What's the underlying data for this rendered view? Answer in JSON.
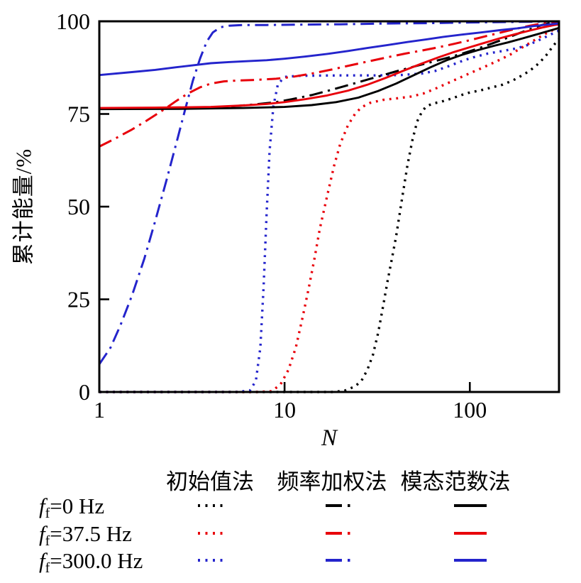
{
  "figure": {
    "background": "#ffffff"
  },
  "colors": {
    "black": "#000000",
    "red": "#e8000a",
    "blue": "#2424cc"
  },
  "axis_titles": {
    "x": "N",
    "y": "累计能量/%"
  },
  "chart_data": {
    "type": "line",
    "title": "",
    "xlabel": "N",
    "ylabel": "累计能量/%",
    "x_scale": "log",
    "xlim": [
      1,
      303
    ],
    "ylim": [
      0,
      100
    ],
    "grid": false,
    "legend_position": "below",
    "x_ticks": [
      {
        "value": 1,
        "label": "1"
      },
      {
        "value": 10,
        "label": "10"
      },
      {
        "value": 100,
        "label": "100"
      }
    ],
    "y_ticks": [
      {
        "value": 0,
        "label": "0"
      },
      {
        "value": 25,
        "label": "25"
      },
      {
        "value": 50,
        "label": "50"
      },
      {
        "value": 75,
        "label": "75"
      },
      {
        "value": 100,
        "label": "100"
      }
    ],
    "series": [
      {
        "name": "初始值法 ff=0 Hz",
        "method": "初始值法",
        "freq": "0 Hz",
        "color": "#000000",
        "style": "dotted",
        "points": [
          [
            1,
            0
          ],
          [
            10,
            0
          ],
          [
            18,
            0
          ],
          [
            21,
            0.3
          ],
          [
            24,
            1.5
          ],
          [
            26,
            3
          ],
          [
            28,
            6
          ],
          [
            30,
            10
          ],
          [
            32,
            16
          ],
          [
            34,
            23
          ],
          [
            36,
            30
          ],
          [
            38,
            36
          ],
          [
            40,
            42
          ],
          [
            43,
            52
          ],
          [
            46,
            61
          ],
          [
            49,
            68
          ],
          [
            52,
            73
          ],
          [
            55,
            75.5
          ],
          [
            58,
            77
          ],
          [
            63,
            77.8
          ],
          [
            70,
            78.3
          ],
          [
            80,
            79.2
          ],
          [
            90,
            80.1
          ],
          [
            100,
            80.8
          ],
          [
            115,
            81.4
          ],
          [
            130,
            82.1
          ],
          [
            150,
            82.9
          ],
          [
            170,
            84
          ],
          [
            190,
            85.3
          ],
          [
            210,
            86.6
          ],
          [
            230,
            88.2
          ],
          [
            250,
            90
          ],
          [
            265,
            91.5
          ],
          [
            280,
            93.2
          ],
          [
            292,
            94.3
          ],
          [
            303,
            95.2
          ]
        ]
      },
      {
        "name": "初始值法 ff=37.5 Hz",
        "method": "初始值法",
        "freq": "37.5 Hz",
        "color": "#e8000a",
        "style": "dotted",
        "points": [
          [
            1,
            0
          ],
          [
            7,
            0
          ],
          [
            8.5,
            0.2
          ],
          [
            9.5,
            2
          ],
          [
            10.5,
            6
          ],
          [
            11.5,
            12
          ],
          [
            12.5,
            20
          ],
          [
            13.5,
            28
          ],
          [
            14.5,
            36
          ],
          [
            15.5,
            44
          ],
          [
            17,
            53
          ],
          [
            18.5,
            61
          ],
          [
            20,
            67
          ],
          [
            22,
            72
          ],
          [
            24,
            75
          ],
          [
            26,
            76.8
          ],
          [
            29,
            78
          ],
          [
            34,
            78.8
          ],
          [
            40,
            79.2
          ],
          [
            48,
            79.7
          ],
          [
            56,
            80.5
          ],
          [
            65,
            81.8
          ],
          [
            75,
            83.2
          ],
          [
            85,
            84.4
          ],
          [
            100,
            86
          ],
          [
            115,
            87.3
          ],
          [
            130,
            88.5
          ],
          [
            145,
            89.6
          ],
          [
            165,
            91
          ],
          [
            185,
            92.5
          ],
          [
            205,
            93.8
          ],
          [
            230,
            95.3
          ],
          [
            255,
            96.6
          ],
          [
            280,
            97.6
          ],
          [
            303,
            98.2
          ]
        ]
      },
      {
        "name": "初始值法 ff=300.0 Hz",
        "method": "初始值法",
        "freq": "300.0 Hz",
        "color": "#2424cc",
        "style": "dotted",
        "points": [
          [
            1,
            0
          ],
          [
            5.5,
            0
          ],
          [
            6.5,
            0.4
          ],
          [
            7,
            3
          ],
          [
            7.4,
            12
          ],
          [
            7.7,
            28
          ],
          [
            8,
            48
          ],
          [
            8.3,
            65
          ],
          [
            8.7,
            77
          ],
          [
            9.2,
            83
          ],
          [
            10,
            85
          ],
          [
            12,
            85.3
          ],
          [
            20,
            85.4
          ],
          [
            30,
            85.4
          ],
          [
            42,
            85.5
          ],
          [
            55,
            85.9
          ],
          [
            65,
            86.6
          ],
          [
            78,
            88
          ],
          [
            92,
            89.4
          ],
          [
            105,
            90.3
          ],
          [
            125,
            91.3
          ],
          [
            150,
            92
          ],
          [
            175,
            92.6
          ],
          [
            200,
            93.4
          ],
          [
            225,
            94.4
          ],
          [
            250,
            95.5
          ],
          [
            270,
            96.3
          ],
          [
            290,
            97.1
          ],
          [
            303,
            97.5
          ]
        ]
      },
      {
        "name": "频率加权法 ff=0 Hz",
        "method": "频率加权法",
        "freq": "0 Hz",
        "color": "#000000",
        "style": "dashdot",
        "points": [
          [
            1,
            76.5
          ],
          [
            2,
            76.5
          ],
          [
            3,
            76.6
          ],
          [
            5,
            77
          ],
          [
            7,
            77.6
          ],
          [
            9,
            78.2
          ],
          [
            11,
            79
          ],
          [
            14,
            80.1
          ],
          [
            17,
            81.2
          ],
          [
            21,
            82.5
          ],
          [
            26,
            83.8
          ],
          [
            32,
            85.1
          ],
          [
            40,
            86.5
          ],
          [
            50,
            87.8
          ],
          [
            62,
            89
          ],
          [
            75,
            90.1
          ],
          [
            90,
            91.2
          ],
          [
            110,
            92.6
          ],
          [
            130,
            93.9
          ],
          [
            155,
            95.3
          ],
          [
            185,
            96.8
          ],
          [
            215,
            98
          ],
          [
            245,
            99
          ],
          [
            275,
            99.6
          ],
          [
            303,
            99.8
          ]
        ]
      },
      {
        "name": "频率加权法 ff=37.5 Hz",
        "method": "频率加权法",
        "freq": "37.5 Hz",
        "color": "#e8000a",
        "style": "dashdot",
        "points": [
          [
            1,
            66.2
          ],
          [
            1.2,
            68.2
          ],
          [
            1.5,
            70.8
          ],
          [
            1.8,
            73.2
          ],
          [
            2.2,
            76
          ],
          [
            2.6,
            78.5
          ],
          [
            3,
            80.5
          ],
          [
            3.5,
            82.2
          ],
          [
            4,
            83.2
          ],
          [
            4.7,
            83.8
          ],
          [
            5.5,
            84
          ],
          [
            7,
            84.2
          ],
          [
            9,
            84.5
          ],
          [
            11,
            85
          ],
          [
            14,
            85.9
          ],
          [
            18,
            87
          ],
          [
            23,
            88.2
          ],
          [
            29,
            89.3
          ],
          [
            36,
            90.3
          ],
          [
            45,
            91.3
          ],
          [
            55,
            92.1
          ],
          [
            68,
            93
          ],
          [
            82,
            93.9
          ],
          [
            100,
            94.9
          ],
          [
            120,
            95.9
          ],
          [
            145,
            96.9
          ],
          [
            175,
            97.9
          ],
          [
            210,
            98.8
          ],
          [
            245,
            99.4
          ],
          [
            275,
            99.7
          ],
          [
            303,
            99.9
          ]
        ]
      },
      {
        "name": "频率加权法 ff=300.0 Hz",
        "method": "频率加权法",
        "freq": "300.0 Hz",
        "color": "#2424cc",
        "style": "dashdot",
        "points": [
          [
            1,
            7.5
          ],
          [
            1.15,
            12
          ],
          [
            1.3,
            18
          ],
          [
            1.5,
            26
          ],
          [
            1.75,
            36
          ],
          [
            2,
            46
          ],
          [
            2.3,
            57
          ],
          [
            2.6,
            67
          ],
          [
            2.9,
            76
          ],
          [
            3.2,
            84
          ],
          [
            3.5,
            90
          ],
          [
            3.8,
            94.5
          ],
          [
            4.1,
            97
          ],
          [
            4.5,
            98.4
          ],
          [
            5,
            98.8
          ],
          [
            6,
            99
          ],
          [
            8,
            99
          ],
          [
            12,
            99.1
          ],
          [
            20,
            99.2
          ],
          [
            35,
            99.4
          ],
          [
            60,
            99.5
          ],
          [
            100,
            99.7
          ],
          [
            160,
            99.8
          ],
          [
            230,
            99.9
          ],
          [
            303,
            100
          ]
        ]
      },
      {
        "name": "模态范数法 ff=0 Hz",
        "method": "模态范数法",
        "freq": "0 Hz",
        "color": "#000000",
        "style": "solid",
        "points": [
          [
            1,
            76.3
          ],
          [
            3,
            76.4
          ],
          [
            6,
            76.6
          ],
          [
            10,
            76.9
          ],
          [
            14,
            77.4
          ],
          [
            19,
            78.2
          ],
          [
            25,
            79.4
          ],
          [
            32,
            81.2
          ],
          [
            40,
            83.2
          ],
          [
            50,
            85.5
          ],
          [
            62,
            87.7
          ],
          [
            75,
            89.5
          ],
          [
            90,
            90.9
          ],
          [
            110,
            92.2
          ],
          [
            135,
            93.4
          ],
          [
            160,
            94.3
          ],
          [
            190,
            95.3
          ],
          [
            220,
            96.2
          ],
          [
            250,
            97
          ],
          [
            280,
            97.7
          ],
          [
            303,
            98.2
          ]
        ]
      },
      {
        "name": "模态范数法 ff=37.5 Hz",
        "method": "模态范数法",
        "freq": "37.5 Hz",
        "color": "#e8000a",
        "style": "solid",
        "points": [
          [
            1,
            76.6
          ],
          [
            2,
            76.7
          ],
          [
            4,
            76.9
          ],
          [
            6,
            77.3
          ],
          [
            8,
            77.7
          ],
          [
            10,
            78.2
          ],
          [
            13,
            79
          ],
          [
            17,
            80
          ],
          [
            22,
            81.3
          ],
          [
            28,
            82.9
          ],
          [
            35,
            84.7
          ],
          [
            44,
            86.7
          ],
          [
            55,
            88.6
          ],
          [
            68,
            90.3
          ],
          [
            82,
            91.7
          ],
          [
            100,
            93
          ],
          [
            120,
            94.2
          ],
          [
            145,
            95.4
          ],
          [
            175,
            96.5
          ],
          [
            210,
            97.5
          ],
          [
            250,
            98.4
          ],
          [
            280,
            98.9
          ],
          [
            303,
            99.2
          ]
        ]
      },
      {
        "name": "模态范数法 ff=300.0 Hz",
        "method": "模态范数法",
        "freq": "300.0 Hz",
        "color": "#2424cc",
        "style": "solid",
        "points": [
          [
            1,
            85.5
          ],
          [
            1.5,
            86.3
          ],
          [
            2,
            86.9
          ],
          [
            2.6,
            87.6
          ],
          [
            3.3,
            88.2
          ],
          [
            4,
            88.7
          ],
          [
            5,
            89
          ],
          [
            6.5,
            89.3
          ],
          [
            8,
            89.5
          ],
          [
            10,
            89.9
          ],
          [
            13,
            90.5
          ],
          [
            17,
            91.2
          ],
          [
            22,
            92
          ],
          [
            28,
            92.8
          ],
          [
            36,
            93.6
          ],
          [
            46,
            94.4
          ],
          [
            58,
            95.1
          ],
          [
            72,
            95.8
          ],
          [
            90,
            96.4
          ],
          [
            115,
            97
          ],
          [
            145,
            97.6
          ],
          [
            180,
            98.1
          ],
          [
            220,
            98.7
          ],
          [
            260,
            99.1
          ],
          [
            303,
            99.4
          ]
        ]
      }
    ]
  },
  "legend": {
    "columns": [
      {
        "label": "初始值法",
        "style": "dotted"
      },
      {
        "label": "频率加权法",
        "style": "dashdot"
      },
      {
        "label": "模态范数法",
        "style": "solid"
      }
    ],
    "rows": [
      {
        "sym": "f",
        "sub": "f",
        "val": "=0 Hz",
        "color": "#000000"
      },
      {
        "sym": "f",
        "sub": "f",
        "val": "=37.5 Hz",
        "color": "#e8000a"
      },
      {
        "sym": "f",
        "sub": "f",
        "val": "=300.0 Hz",
        "color": "#2424cc"
      }
    ]
  }
}
